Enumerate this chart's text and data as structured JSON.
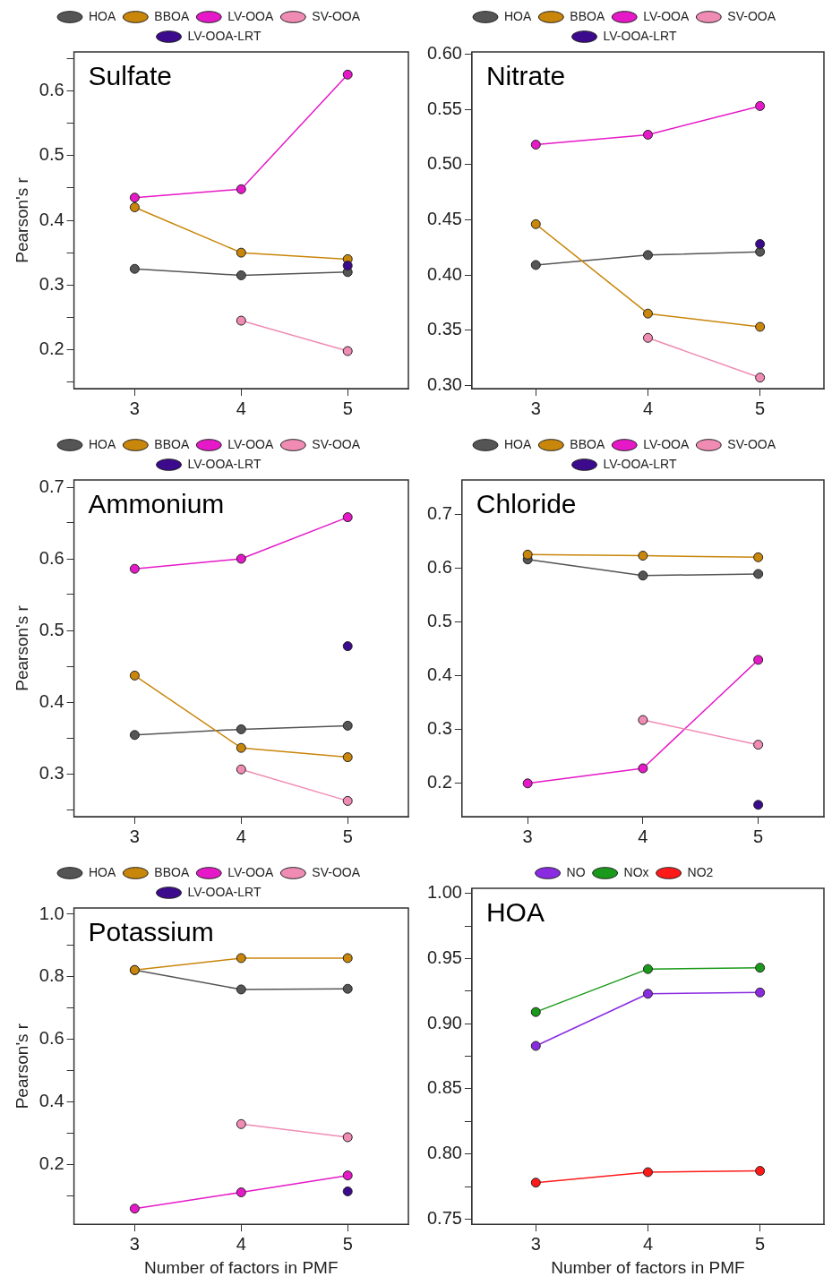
{
  "chart_data": [
    {
      "type": "line",
      "title": "Sulfate",
      "ylabel": "Pearson's r",
      "x": [
        3,
        4,
        5
      ],
      "xlim": [
        2.43,
        5.57
      ],
      "xticks": [
        3,
        4,
        5
      ],
      "ylim": [
        0.14,
        0.66
      ],
      "yticks": [
        {
          "value": 0.15,
          "label": null
        },
        0.2,
        {
          "value": 0.25,
          "label": null
        },
        0.3,
        {
          "value": 0.35,
          "label": null
        },
        0.4,
        {
          "value": 0.45,
          "label": null
        },
        0.5,
        {
          "value": 0.55,
          "label": null
        },
        0.6,
        {
          "value": 0.65,
          "label": null
        }
      ],
      "legend": "top",
      "marker": "circle",
      "line_style": "solid",
      "series": [
        {
          "name": "HOA",
          "color": "#555555",
          "values": [
            0.325,
            0.315,
            0.32
          ]
        },
        {
          "name": "BBOA",
          "color": "#c8860a",
          "values": [
            0.42,
            0.35,
            0.34
          ]
        },
        {
          "name": "LV-OOA",
          "color": "#e619c8",
          "values": [
            0.435,
            0.448,
            0.625
          ]
        },
        {
          "name": "SV-OOA",
          "color": "#f08cb4",
          "values": [
            null,
            0.245,
            0.198
          ]
        },
        {
          "name": "LV-OOA-LRT",
          "color": "#3c0a8c",
          "type": "scatter",
          "values": [
            null,
            null,
            0.33
          ]
        }
      ]
    },
    {
      "type": "line",
      "title": "Nitrate",
      "x": [
        3,
        4,
        5
      ],
      "xlim": [
        2.43,
        5.57
      ],
      "xticks": [
        3,
        4,
        5
      ],
      "ylim": [
        0.297,
        0.602
      ],
      "yticks": [
        {
          "value": 0.3,
          "label": "0.30"
        },
        0.35,
        {
          "value": 0.4,
          "label": "0.40"
        },
        0.45,
        {
          "value": 0.5,
          "label": "0.50"
        },
        0.55,
        {
          "value": 0.6,
          "label": "0.60"
        }
      ],
      "legend": "top",
      "marker": "circle",
      "line_style": "solid",
      "series": [
        {
          "name": "HOA",
          "color": "#555555",
          "values": [
            0.409,
            0.418,
            0.421
          ]
        },
        {
          "name": "BBOA",
          "color": "#c8860a",
          "values": [
            0.446,
            0.365,
            0.353
          ]
        },
        {
          "name": "LV-OOA",
          "color": "#e619c8",
          "values": [
            0.518,
            0.527,
            0.553
          ]
        },
        {
          "name": "SV-OOA",
          "color": "#f08cb4",
          "values": [
            null,
            0.343,
            0.307
          ]
        },
        {
          "name": "LV-OOA-LRT",
          "color": "#3c0a8c",
          "type": "scatter",
          "values": [
            null,
            null,
            0.428
          ]
        }
      ]
    },
    {
      "type": "line",
      "title": "Ammonium",
      "ylabel": "Pearson's r",
      "x": [
        3,
        4,
        5
      ],
      "xlim": [
        2.43,
        5.57
      ],
      "xticks": [
        3,
        4,
        5
      ],
      "ylim": [
        0.24,
        0.71
      ],
      "yticks": [
        {
          "value": 0.25,
          "label": null
        },
        0.3,
        {
          "value": 0.35,
          "label": null
        },
        0.4,
        {
          "value": 0.45,
          "label": null
        },
        0.5,
        {
          "value": 0.55,
          "label": null
        },
        0.6,
        {
          "value": 0.65,
          "label": null
        },
        0.7
      ],
      "legend": "top",
      "marker": "circle",
      "line_style": "solid",
      "series": [
        {
          "name": "HOA",
          "color": "#555555",
          "values": [
            0.354,
            0.362,
            0.367
          ]
        },
        {
          "name": "BBOA",
          "color": "#c8860a",
          "values": [
            0.437,
            0.336,
            0.323
          ]
        },
        {
          "name": "LV-OOA",
          "color": "#e619c8",
          "values": [
            0.586,
            0.6,
            0.658
          ]
        },
        {
          "name": "SV-OOA",
          "color": "#f08cb4",
          "values": [
            null,
            0.306,
            0.262
          ]
        },
        {
          "name": "LV-OOA-LRT",
          "color": "#3c0a8c",
          "type": "scatter",
          "values": [
            null,
            null,
            0.478
          ]
        }
      ]
    },
    {
      "type": "line",
      "title": "Chloride",
      "x": [
        3,
        4,
        5
      ],
      "xlim": [
        2.43,
        5.57
      ],
      "xticks": [
        3,
        4,
        5
      ],
      "ylim": [
        0.138,
        0.765
      ],
      "yticks": [
        0.2,
        0.3,
        0.4,
        0.5,
        0.6,
        0.7
      ],
      "legend": "top",
      "marker": "circle",
      "line_style": "solid",
      "series": [
        {
          "name": "HOA",
          "color": "#555555",
          "values": [
            0.617,
            0.587,
            0.59
          ]
        },
        {
          "name": "BBOA",
          "color": "#c8860a",
          "values": [
            0.626,
            0.624,
            0.621
          ]
        },
        {
          "name": "LV-OOA",
          "color": "#e619c8",
          "values": [
            0.2,
            0.228,
            0.43
          ]
        },
        {
          "name": "SV-OOA",
          "color": "#f08cb4",
          "values": [
            null,
            0.318,
            0.272
          ]
        },
        {
          "name": "LV-OOA-LRT",
          "color": "#3c0a8c",
          "type": "scatter",
          "values": [
            null,
            null,
            0.16
          ]
        }
      ]
    },
    {
      "type": "line",
      "title": "Potassium",
      "ylabel": "Pearson's r",
      "xlabel": "Number of factors in PMF",
      "x": [
        3,
        4,
        5
      ],
      "xlim": [
        2.43,
        5.57
      ],
      "xticks": [
        3,
        4,
        5
      ],
      "ylim": [
        0.01,
        1.02
      ],
      "yticks": [
        {
          "value": 0.1,
          "label": null
        },
        0.2,
        {
          "value": 0.3,
          "label": null
        },
        0.4,
        {
          "value": 0.5,
          "label": null
        },
        0.6,
        {
          "value": 0.7,
          "label": null
        },
        0.8,
        {
          "value": 0.9,
          "label": null
        },
        {
          "value": 1.0,
          "label": "1.0"
        }
      ],
      "legend": "top",
      "marker": "circle",
      "line_style": "solid",
      "series": [
        {
          "name": "HOA",
          "color": "#555555",
          "values": [
            0.822,
            0.76,
            0.762
          ]
        },
        {
          "name": "BBOA",
          "color": "#c8860a",
          "values": [
            0.822,
            0.86,
            0.86
          ]
        },
        {
          "name": "LV-OOA",
          "color": "#e619c8",
          "values": [
            0.06,
            0.112,
            0.166
          ]
        },
        {
          "name": "SV-OOA",
          "color": "#f08cb4",
          "values": [
            null,
            0.33,
            0.288
          ]
        },
        {
          "name": "LV-OOA-LRT",
          "color": "#3c0a8c",
          "type": "scatter",
          "values": [
            null,
            null,
            0.115
          ]
        }
      ]
    },
    {
      "type": "line",
      "title": "HOA",
      "xlabel": "Number of factors in PMF",
      "x": [
        3,
        4,
        5
      ],
      "xlim": [
        2.43,
        5.57
      ],
      "xticks": [
        3,
        4,
        5
      ],
      "ylim": [
        0.746,
        1.004
      ],
      "yticks": [
        0.75,
        {
          "value": 0.775,
          "label": null
        },
        {
          "value": 0.8,
          "label": "0.80"
        },
        {
          "value": 0.825,
          "label": null
        },
        0.85,
        {
          "value": 0.875,
          "label": null
        },
        {
          "value": 0.9,
          "label": "0.90"
        },
        {
          "value": 0.925,
          "label": null
        },
        0.95,
        {
          "value": 0.975,
          "label": null
        },
        {
          "value": 1.0,
          "label": "1.00"
        }
      ],
      "legend": "top",
      "marker": "circle",
      "line_style": "solid",
      "series": [
        {
          "name": "NO",
          "color": "#8a2be2",
          "values": [
            0.883,
            0.923,
            0.924
          ]
        },
        {
          "name": "NOx",
          "color": "#1a9a1a",
          "values": [
            0.909,
            0.942,
            0.943
          ]
        },
        {
          "name": "NO2",
          "color": "#ff1a1a",
          "values": [
            0.778,
            0.786,
            0.787
          ]
        }
      ]
    }
  ]
}
